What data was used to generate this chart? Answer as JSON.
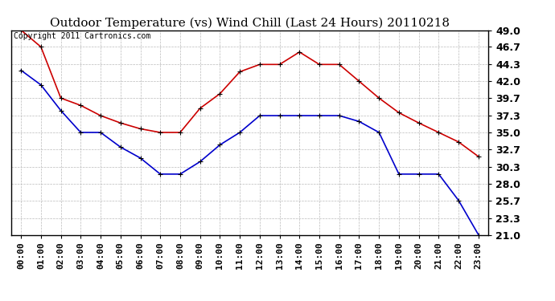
{
  "title": "Outdoor Temperature (vs) Wind Chill (Last 24 Hours) 20110218",
  "copyright_text": "Copyright 2011 Cartronics.com",
  "hours": [
    "00:00",
    "01:00",
    "02:00",
    "03:00",
    "04:00",
    "05:00",
    "06:00",
    "07:00",
    "08:00",
    "09:00",
    "10:00",
    "11:00",
    "12:00",
    "13:00",
    "14:00",
    "15:00",
    "16:00",
    "17:00",
    "18:00",
    "19:00",
    "20:00",
    "21:00",
    "22:00",
    "23:00"
  ],
  "temp": [
    49.0,
    46.7,
    39.7,
    38.7,
    37.3,
    36.3,
    35.5,
    35.0,
    35.0,
    38.3,
    40.3,
    43.3,
    44.3,
    44.3,
    46.0,
    44.3,
    44.3,
    42.0,
    39.7,
    37.7,
    36.3,
    35.0,
    33.7,
    31.7
  ],
  "windchill": [
    43.5,
    41.5,
    38.0,
    35.0,
    35.0,
    33.0,
    31.5,
    29.3,
    29.3,
    31.0,
    33.3,
    35.0,
    37.3,
    37.3,
    37.3,
    37.3,
    37.3,
    36.5,
    35.0,
    29.3,
    29.3,
    29.3,
    25.7,
    21.0
  ],
  "ylim": [
    21.0,
    49.0
  ],
  "yticks": [
    21.0,
    23.3,
    25.7,
    28.0,
    30.3,
    32.7,
    35.0,
    37.3,
    39.7,
    42.0,
    44.3,
    46.7,
    49.0
  ],
  "temp_color": "#cc0000",
  "windchill_color": "#0000cc",
  "bg_color": "#ffffff",
  "plot_bg_color": "#ffffff",
  "grid_color": "#bbbbbb",
  "title_fontsize": 11,
  "copyright_fontsize": 7,
  "tick_fontsize": 8,
  "ytick_fontsize": 9
}
